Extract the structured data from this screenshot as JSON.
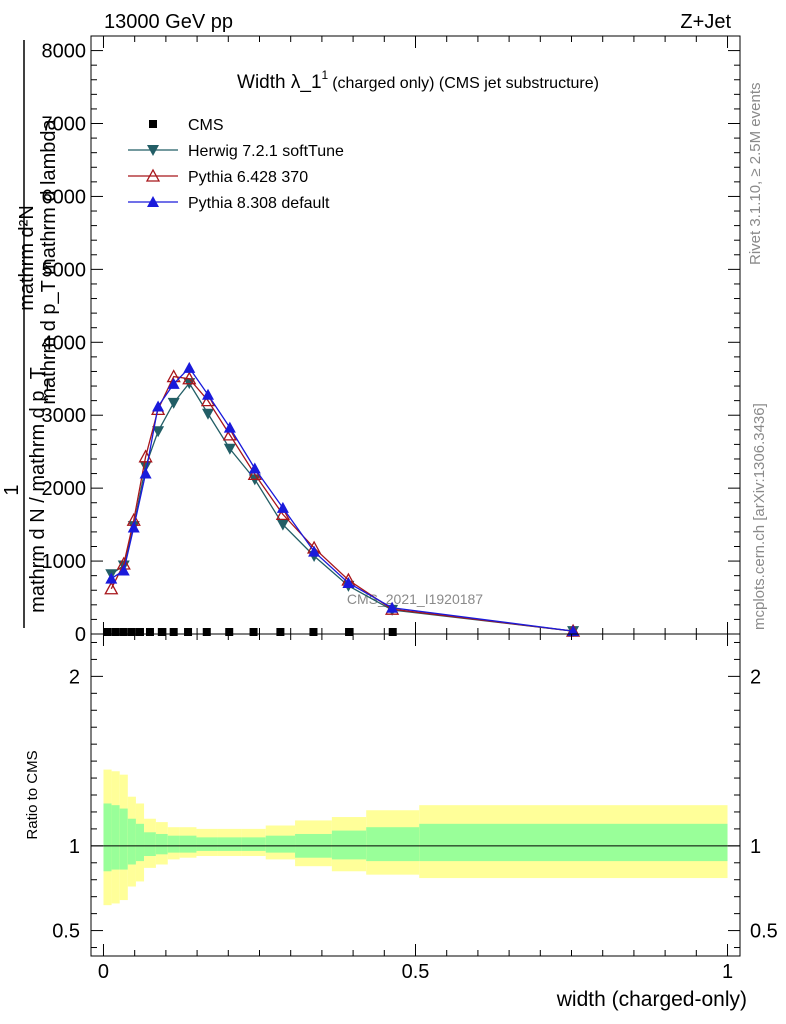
{
  "header": {
    "left": "13000 GeV pp",
    "right": "Z+Jet"
  },
  "side": {
    "rivet": "Rivet 3.1.10, ≥ 2.5M events",
    "mcplots": "mcplots.cern.ch [arXiv:1306.3436]"
  },
  "watermark": "CMS_2021_I1920187",
  "chart_data": [
    {
      "type": "line",
      "title": "Width λ_1",
      "title_sup": "1",
      "title_suffix": "(charged only) (CMS jet substructure)",
      "ylabel_numerator": "mathrm d²N",
      "ylabel_numerator_sub": "mathrm d p_T mathrm d lambda",
      "ylabel_fraction_one": "1",
      "ylabel_denominator": "mathrm d N / mathrm d p_T",
      "ylim": [
        0,
        8200
      ],
      "yticks": [
        0,
        1000,
        2000,
        3000,
        4000,
        5000,
        6000,
        7000,
        8000
      ],
      "ytick_labels": [
        "0",
        "1000",
        "2000",
        "3000",
        "4000",
        "5000",
        "6000",
        "7000",
        "8000"
      ],
      "xlim": [
        -0.02,
        1.02
      ],
      "log_y": false,
      "legend_position": "top-left",
      "series": [
        {
          "name": "CMS",
          "color": "#000000",
          "marker": "square",
          "x": [
            0.0067,
            0.0197,
            0.0325,
            0.0455,
            0.0585,
            0.0745,
            0.0935,
            0.1125,
            0.1355,
            0.1655,
            0.2015,
            0.2405,
            0.2835,
            0.3365,
            0.3935,
            0.4635
          ],
          "y": [
            0,
            0,
            0,
            0,
            0,
            0,
            0,
            0,
            0,
            0,
            0,
            0,
            0,
            0,
            0,
            0
          ]
        },
        {
          "name": "Herwig 7.2.1 softTune",
          "color": "#225e66",
          "marker": "triangle-down",
          "x": [
            0.0125,
            0.0325,
            0.0485,
            0.0675,
            0.0875,
            0.1125,
            0.1375,
            0.1675,
            0.2025,
            0.2425,
            0.2875,
            0.3375,
            0.3925,
            0.4625,
            0.7525
          ],
          "y": [
            820,
            940,
            1480,
            2300,
            2780,
            3170,
            3440,
            3020,
            2540,
            2120,
            1500,
            1070,
            660,
            330,
            40
          ]
        },
        {
          "name": "Pythia 6.428 370",
          "color": "#a8161b",
          "marker": "triangle-up-open",
          "x": [
            0.0125,
            0.0325,
            0.0485,
            0.0675,
            0.0875,
            0.1125,
            0.1375,
            0.1675,
            0.2025,
            0.2425,
            0.2875,
            0.3375,
            0.3925,
            0.4625,
            0.7525
          ],
          "y": [
            620,
            960,
            1560,
            2430,
            3080,
            3530,
            3500,
            3200,
            2730,
            2190,
            1640,
            1180,
            740,
            340,
            40
          ]
        },
        {
          "name": "Pythia 8.308 default",
          "color": "#1a1adb",
          "marker": "triangle-up",
          "x": [
            0.0125,
            0.0325,
            0.0485,
            0.0675,
            0.0875,
            0.1125,
            0.1375,
            0.1675,
            0.2025,
            0.2425,
            0.2875,
            0.3375,
            0.3925,
            0.4625,
            0.7525
          ],
          "y": [
            760,
            870,
            1460,
            2200,
            3120,
            3430,
            3650,
            3280,
            2830,
            2270,
            1730,
            1130,
            700,
            360,
            40
          ]
        }
      ]
    },
    {
      "type": "area",
      "ylabel": "Ratio to CMS",
      "xlabel": "width (charged-only)",
      "ylim": [
        0.35,
        2.25
      ],
      "yticks": [
        0.5,
        1,
        2
      ],
      "ytick_labels": [
        "0.5",
        "1",
        "2"
      ],
      "xlim": [
        -0.02,
        1.02
      ],
      "xticks": [
        0,
        0.5,
        1
      ],
      "xtick_labels": [
        "0",
        "0.5",
        "1"
      ],
      "reference_line": 1,
      "band_colors": {
        "inner": "#99ff99",
        "outer": "#ffff99"
      },
      "bands": {
        "edges": [
          0,
          0.013,
          0.026,
          0.039,
          0.052,
          0.065,
          0.084,
          0.103,
          0.122,
          0.149,
          0.182,
          0.221,
          0.26,
          0.307,
          0.366,
          0.421,
          0.506,
          1.0
        ],
        "inner_low": [
          0.85,
          0.86,
          0.86,
          0.89,
          0.91,
          0.94,
          0.95,
          0.96,
          0.96,
          0.97,
          0.97,
          0.97,
          0.96,
          0.93,
          0.92,
          0.91,
          0.91
        ],
        "inner_high": [
          1.25,
          1.24,
          1.22,
          1.16,
          1.13,
          1.08,
          1.07,
          1.06,
          1.06,
          1.05,
          1.05,
          1.05,
          1.06,
          1.07,
          1.09,
          1.11,
          1.13
        ],
        "outer_low": [
          0.65,
          0.66,
          0.68,
          0.76,
          0.79,
          0.87,
          0.89,
          0.92,
          0.93,
          0.94,
          0.94,
          0.94,
          0.92,
          0.88,
          0.85,
          0.83,
          0.81
        ],
        "outer_high": [
          1.45,
          1.44,
          1.42,
          1.29,
          1.25,
          1.16,
          1.14,
          1.11,
          1.11,
          1.1,
          1.1,
          1.1,
          1.12,
          1.15,
          1.17,
          1.21,
          1.24
        ]
      }
    }
  ]
}
